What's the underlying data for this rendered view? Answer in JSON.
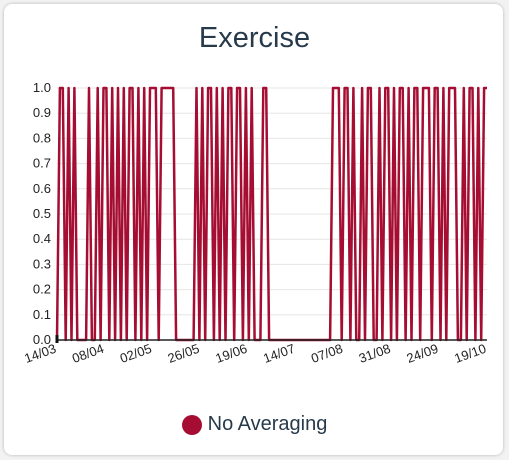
{
  "chart_data": {
    "type": "line",
    "title": "Exercise",
    "xlabel": "",
    "ylabel": "",
    "ylim": [
      0,
      1
    ],
    "y_ticks": [
      "0.0",
      "0.1",
      "0.2",
      "0.3",
      "0.4",
      "0.5",
      "0.6",
      "0.7",
      "0.8",
      "0.9",
      "1.0"
    ],
    "x_ticks": [
      "14/03",
      "08/04",
      "02/05",
      "26/05",
      "19/06",
      "14/07",
      "07/08",
      "31/08",
      "24/09",
      "19/10"
    ],
    "grid": true,
    "legend_position": "bottom",
    "series": [
      {
        "name": "No Averaging",
        "color": "#a50e32",
        "values": [
          0,
          1,
          1,
          0,
          1,
          0,
          1,
          0,
          0,
          0,
          0,
          1,
          0,
          0,
          1,
          0,
          1,
          1,
          0,
          1,
          0,
          1,
          0,
          1,
          0,
          1,
          1,
          0,
          1,
          0,
          1,
          0,
          1,
          1,
          1,
          0,
          1,
          1,
          1,
          1,
          1,
          0,
          0,
          0,
          0,
          0,
          0,
          0,
          1,
          0,
          1,
          0,
          1,
          1,
          0,
          1,
          0,
          1,
          0,
          1,
          1,
          0,
          1,
          1,
          0,
          1,
          0,
          1,
          0,
          0,
          0,
          1,
          1,
          0,
          0,
          0,
          0,
          0,
          0,
          0,
          0,
          0,
          0,
          0,
          0,
          0,
          0,
          0,
          0,
          0,
          0,
          0,
          0,
          0,
          0,
          1,
          1,
          1,
          0,
          1,
          1,
          0,
          1,
          0,
          0,
          1,
          0,
          1,
          1,
          0,
          0,
          1,
          0,
          1,
          1,
          0,
          1,
          0,
          1,
          1,
          0,
          1,
          0,
          1,
          1,
          0,
          1,
          1,
          1,
          0,
          1,
          1,
          0,
          1,
          0,
          1,
          1,
          1,
          0,
          0,
          1,
          0,
          1,
          1,
          0,
          1,
          0,
          1,
          1
        ]
      }
    ]
  }
}
